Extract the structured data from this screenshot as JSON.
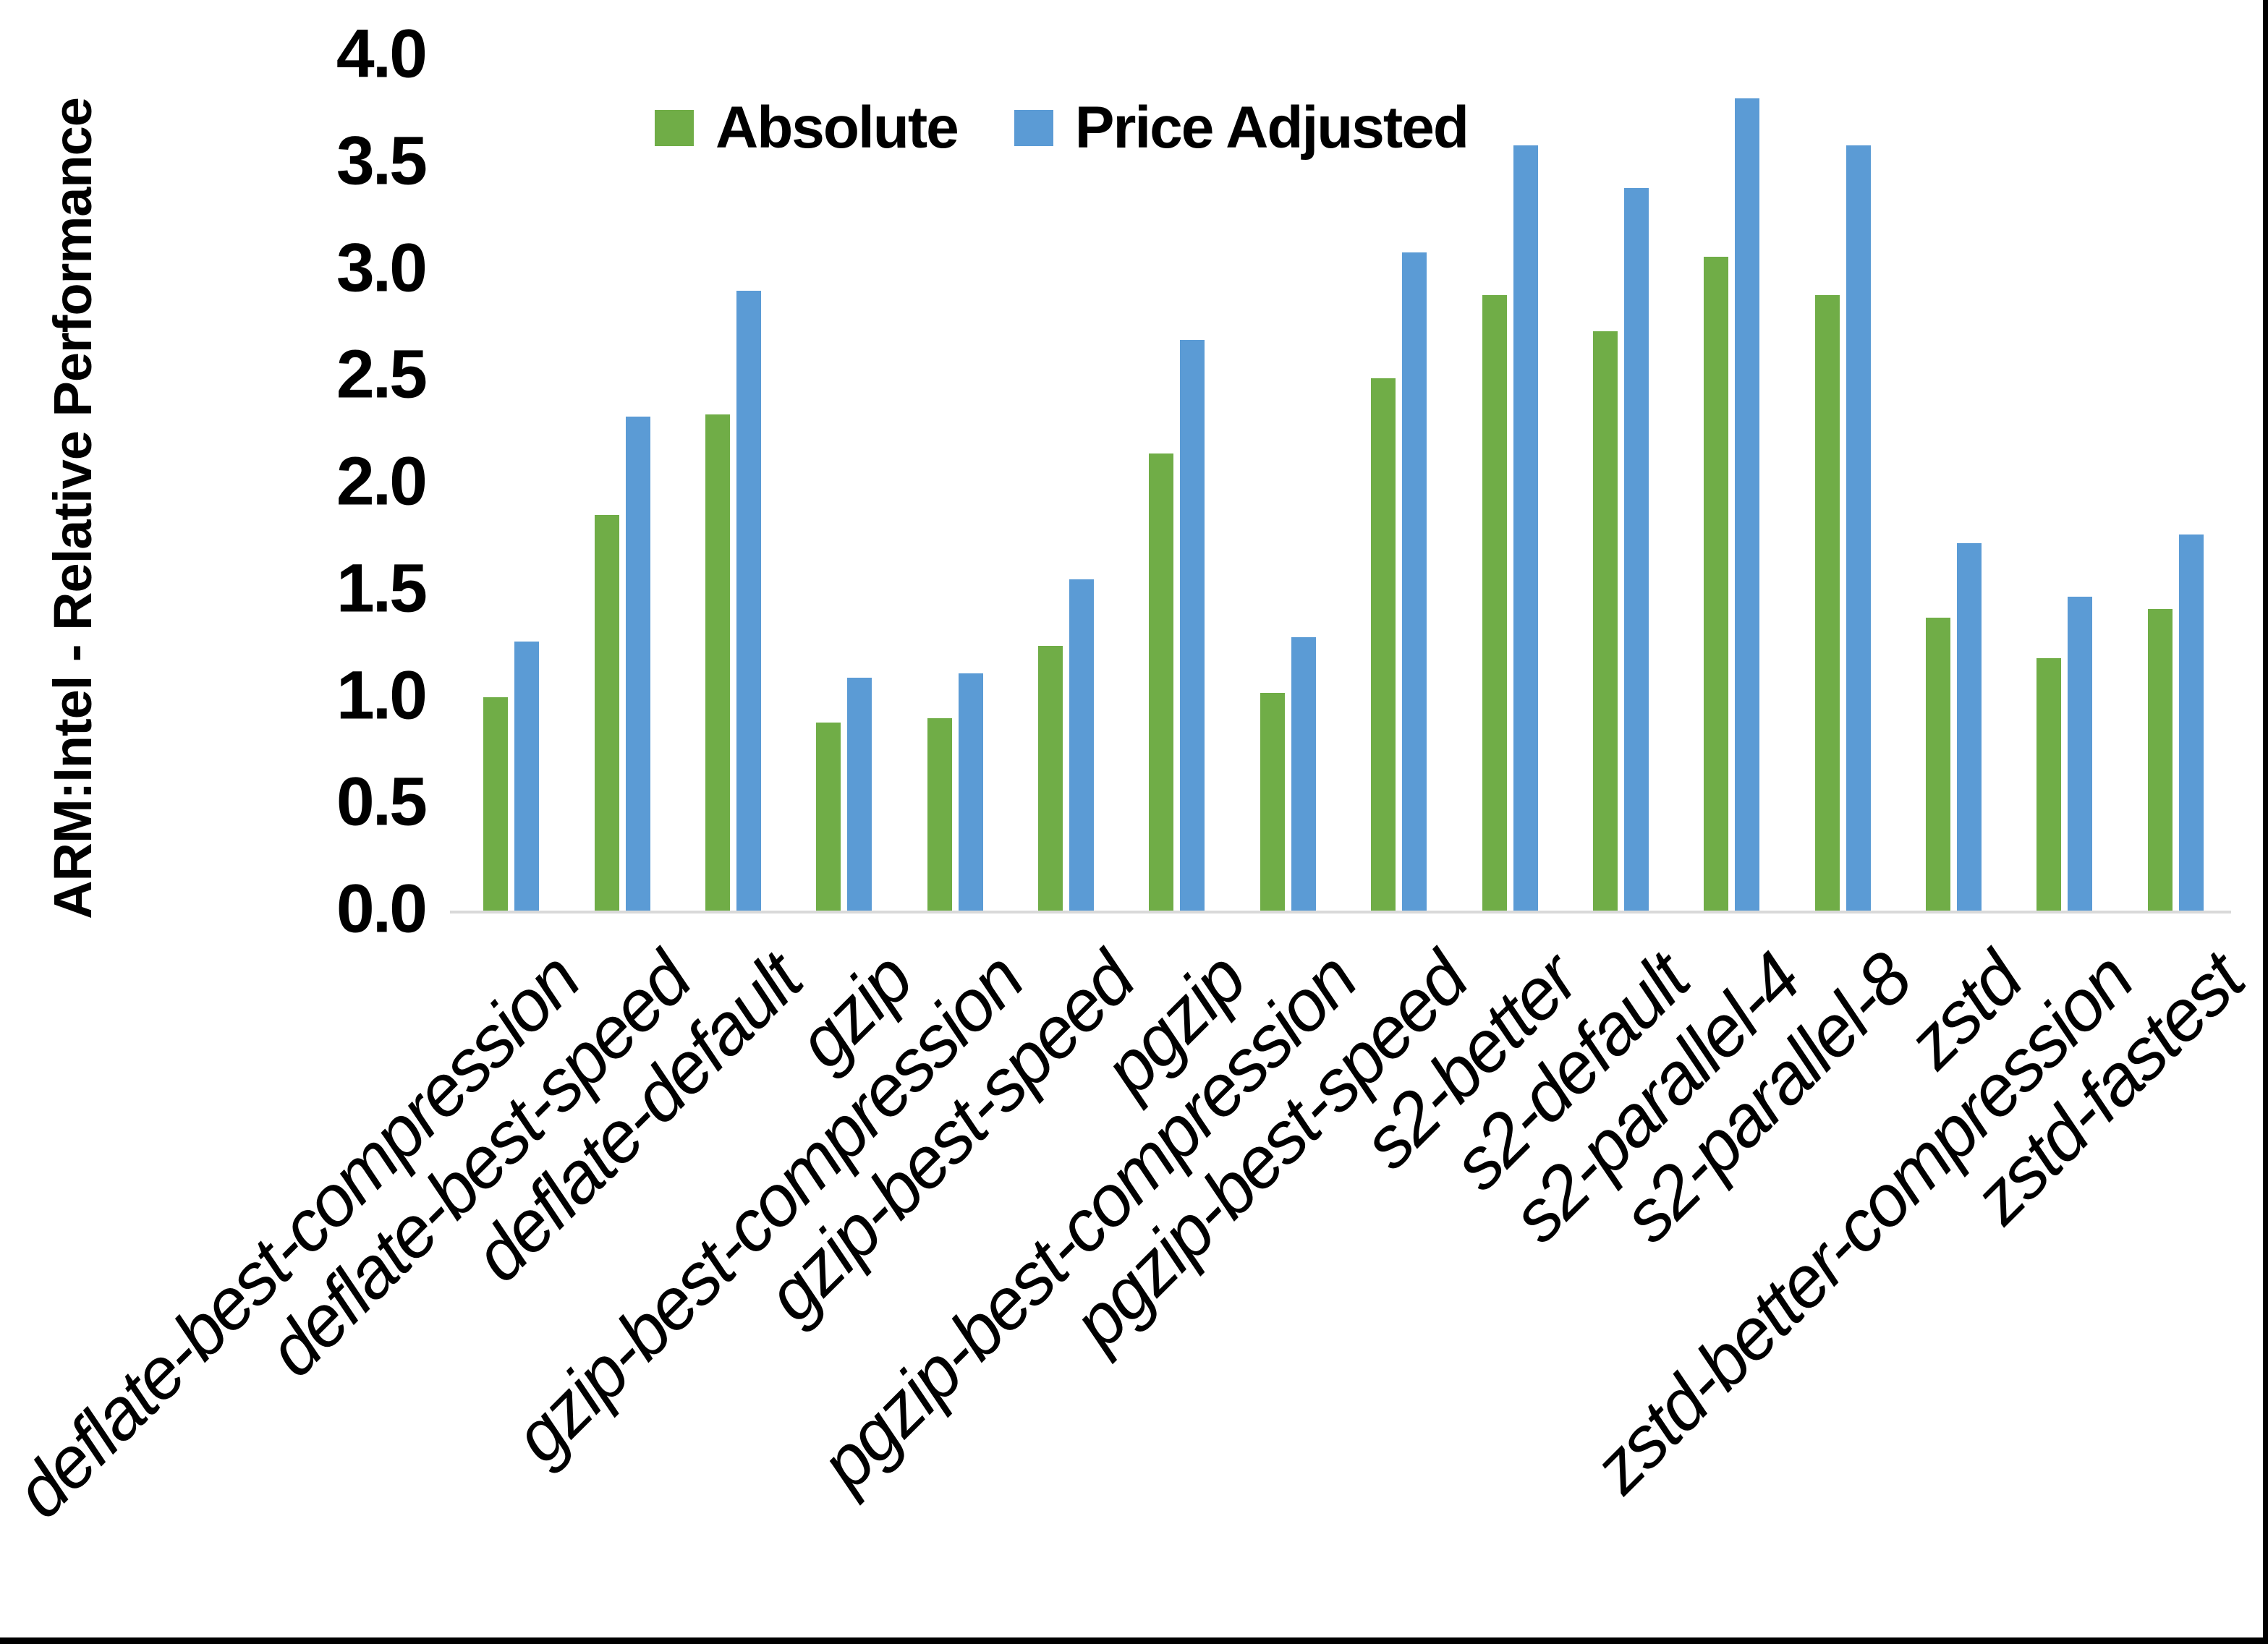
{
  "figure": {
    "background": "#ffffff",
    "frame_edge_color": "#000000",
    "axis_line_color": "#d9d9d9",
    "text_color": "#000000"
  },
  "chart_data": {
    "type": "bar",
    "title": "",
    "xlabel": "",
    "ylabel": "ARM:Intel - Relative Performance",
    "ylim": [
      0.0,
      4.0
    ],
    "ytick_step": 0.5,
    "yticks": [
      "4.0",
      "3.5",
      "3.0",
      "2.5",
      "2.0",
      "1.5",
      "1.0",
      "0.5",
      "0.0"
    ],
    "grid": false,
    "legend_position": "top-center",
    "x_label_rotation_deg": 45,
    "categories": [
      "deflate-best-compression",
      "deflate-best-speed",
      "deflate-default",
      "gzip",
      "gzip-best-compression",
      "gzip-best-speed",
      "pgzip",
      "pgzip-best-compression",
      "pgzip-best-speed",
      "s2-better",
      "s2-default",
      "s2-parallel-4",
      "s2-parallel-8",
      "zstd",
      "zstd-better-compression",
      "zstd-fastest"
    ],
    "series": [
      {
        "name": "Absolute",
        "color": "#70AD47",
        "values": [
          1.0,
          1.85,
          2.32,
          0.88,
          0.9,
          1.24,
          2.14,
          1.02,
          2.49,
          2.88,
          2.71,
          3.06,
          2.88,
          1.37,
          1.18,
          1.41
        ]
      },
      {
        "name": "Price Adjusted",
        "color": "#5B9BD5",
        "values": [
          1.26,
          2.31,
          2.9,
          1.09,
          1.11,
          1.55,
          2.67,
          1.28,
          3.08,
          3.58,
          3.38,
          3.8,
          3.58,
          1.72,
          1.47,
          1.76
        ]
      }
    ]
  }
}
